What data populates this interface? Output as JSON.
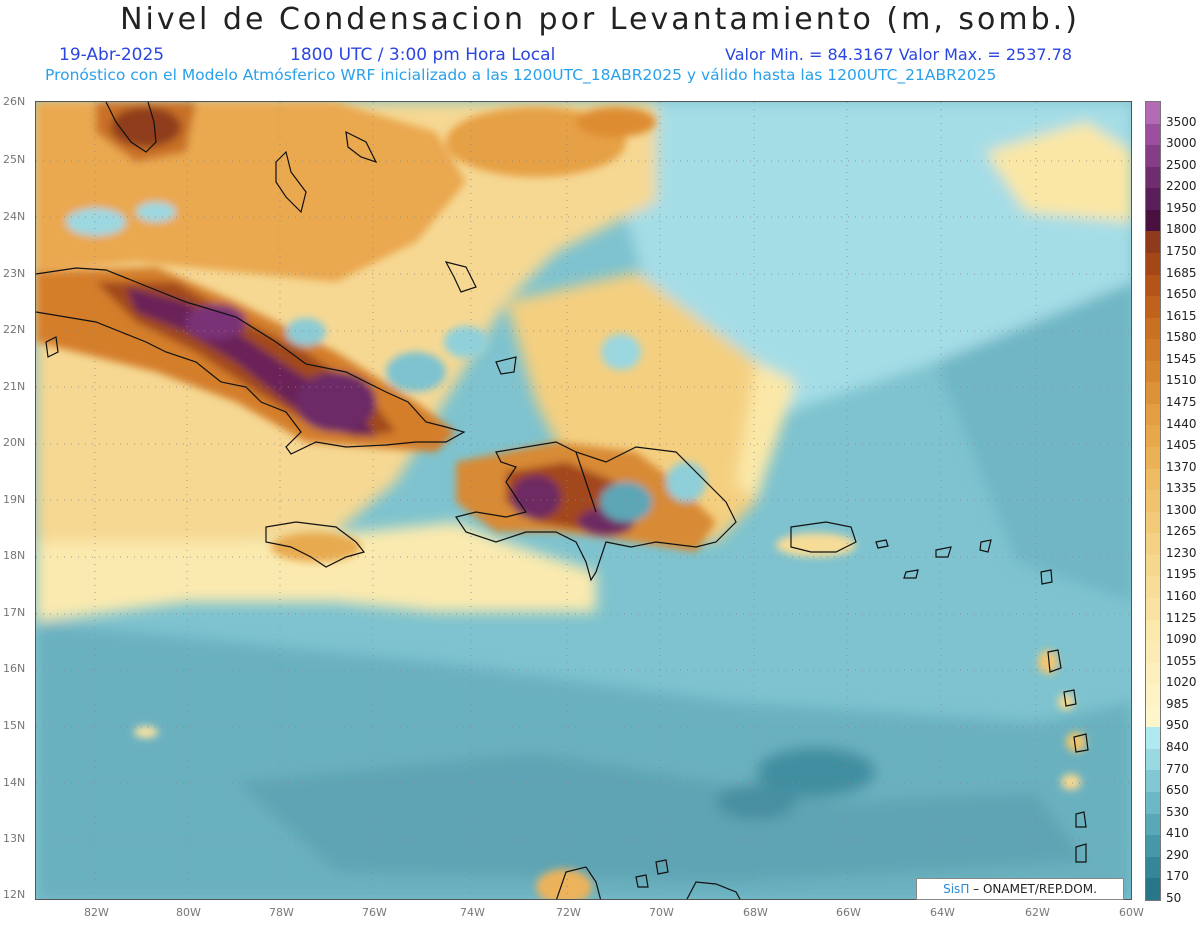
{
  "header": {
    "title": "Nivel de Condensacion por Levantamiento (m, somb.)",
    "date": "19-Abr-2025",
    "time": "1800 UTC / 3:00 pm Hora Local",
    "min_max": "Valor Min. = 84.3167   Valor Max. = 2537.78",
    "model_line": "Pronóstico con el Modelo Atmósferico WRF inicializado a las 1200UTC_18ABR2025 y válido hasta las  1200UTC_21ABR2025"
  },
  "axes": {
    "lat_labels": [
      "26N",
      "25N",
      "24N",
      "23N",
      "22N",
      "21N",
      "20N",
      "19N",
      "18N",
      "17N",
      "16N",
      "15N",
      "14N",
      "13N",
      "12N"
    ],
    "lon_labels": [
      "82W",
      "80W",
      "78W",
      "76W",
      "74W",
      "72W",
      "70W",
      "68W",
      "66W",
      "64W",
      "62W",
      "60W"
    ]
  },
  "colorbar": {
    "labels": [
      "3500",
      "3000",
      "2500",
      "2200",
      "1950",
      "1800",
      "1750",
      "1685",
      "1650",
      "1615",
      "1580",
      "1545",
      "1510",
      "1475",
      "1440",
      "1405",
      "1370",
      "1335",
      "1300",
      "1265",
      "1230",
      "1195",
      "1160",
      "1125",
      "1090",
      "1055",
      "1020",
      "985",
      "950",
      "840",
      "770",
      "650",
      "530",
      "410",
      "290",
      "170",
      "50"
    ],
    "colors": [
      "#b46bb5",
      "#9b4f9e",
      "#853d87",
      "#6f2d70",
      "#5a1f5a",
      "#4a1040",
      "#8f3a1a",
      "#a54617",
      "#b45418",
      "#c0621c",
      "#c97022",
      "#d07b27",
      "#d6862e",
      "#dc9236",
      "#e29e40",
      "#e6a84a",
      "#eab255",
      "#eebc62",
      "#f0c46e",
      "#f2ca78",
      "#f4d184",
      "#f6d78e",
      "#f8dd98",
      "#fae3a2",
      "#fbe8ab",
      "#fcecb4",
      "#fdf0bc",
      "#fef3c4",
      "#fef6cb",
      "#aeeaf0",
      "#9ad8e2",
      "#82c8d4",
      "#6db8c6",
      "#58a8b8",
      "#4697a8",
      "#358698",
      "#27768a"
    ]
  },
  "credit": {
    "brand": "SisΠ",
    "text": "– ONAMET/REP.DOM."
  }
}
